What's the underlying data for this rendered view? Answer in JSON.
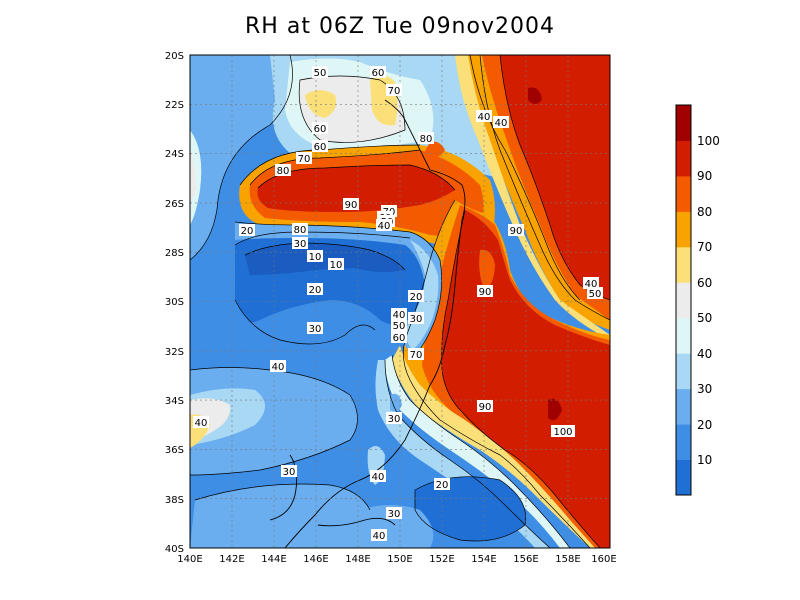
{
  "title": "RH at 06Z Tue 09nov2004",
  "map": {
    "x_ticks": [
      "140E",
      "142E",
      "144E",
      "146E",
      "148E",
      "150E",
      "152E",
      "154E",
      "156E",
      "158E",
      "160E"
    ],
    "y_ticks": [
      "20S",
      "22S",
      "24S",
      "26S",
      "28S",
      "30S",
      "32S",
      "34S",
      "36S",
      "38S",
      "40S"
    ],
    "contour_labels": [
      "50",
      "60",
      "70",
      "40",
      "40",
      "60",
      "60",
      "80",
      "80",
      "70",
      "90",
      "70",
      "60",
      "50",
      "40",
      "20",
      "80",
      "30",
      "90",
      "10",
      "10",
      "20",
      "90",
      "20",
      "40",
      "30",
      "50",
      "60",
      "40",
      "30",
      "70",
      "30",
      "90",
      "40",
      "100",
      "30",
      "40",
      "20",
      "30",
      "40",
      "40",
      "50"
    ]
  },
  "colorbar": {
    "labels": [
      "10",
      "20",
      "30",
      "40",
      "50",
      "60",
      "70",
      "80",
      "90",
      "100"
    ],
    "colors": [
      "#1f6fd4",
      "#3f8ee6",
      "#6aaef0",
      "#a8d8f4",
      "#dff6f6",
      "#ececec",
      "#fbe07a",
      "#f8a300",
      "#f45b00",
      "#d21d00",
      "#a00000"
    ]
  }
}
